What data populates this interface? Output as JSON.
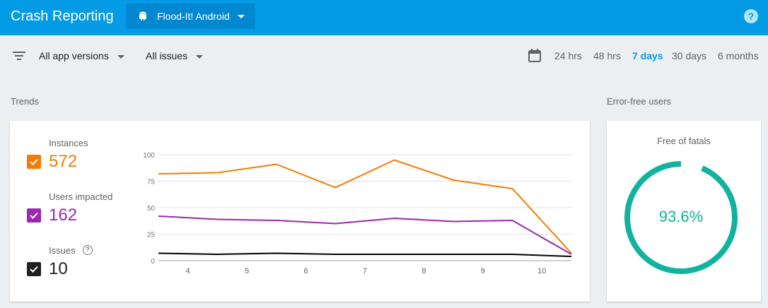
{
  "header": {
    "title": "Crash Reporting",
    "project": "Flood-It! Android"
  },
  "filters": {
    "versions": "All app versions",
    "issues": "All issues",
    "ranges": [
      "24 hrs",
      "48 hrs",
      "7 days",
      "30 days",
      "6 months"
    ],
    "active_range": "7 days"
  },
  "trends": {
    "section_label": "Trends",
    "metrics": [
      {
        "label": "Instances",
        "value": "572",
        "color": "#f57c00"
      },
      {
        "label": "Users impacted",
        "value": "162",
        "color": "#9c27b0"
      },
      {
        "label": "Issues",
        "value": "10",
        "color": "#212121"
      }
    ]
  },
  "chart_data": {
    "type": "line",
    "x": [
      3.5,
      4.5,
      5.5,
      6.5,
      7.5,
      8.5,
      9.5,
      10.5
    ],
    "xticks": [
      4,
      5,
      6,
      7,
      8,
      9,
      10
    ],
    "yticks": [
      0,
      25,
      50,
      75,
      100
    ],
    "ylim": [
      0,
      100
    ],
    "xlim": [
      3.5,
      10.5
    ],
    "series": [
      {
        "name": "Instances",
        "color": "#f57c00",
        "values": [
          82,
          83,
          91,
          69,
          95,
          76,
          68,
          7
        ]
      },
      {
        "name": "Users impacted",
        "color": "#9c27b0",
        "values": [
          42,
          39,
          38,
          35,
          40,
          37,
          38,
          6
        ]
      },
      {
        "name": "Issues",
        "color": "#000000",
        "values": [
          7,
          6,
          7,
          6,
          6,
          6,
          6,
          4
        ]
      }
    ]
  },
  "error_free": {
    "section_label": "Error-free users",
    "title": "Free of fatals",
    "value": "93.6%",
    "fraction": 0.936,
    "color": "#11b39e"
  }
}
